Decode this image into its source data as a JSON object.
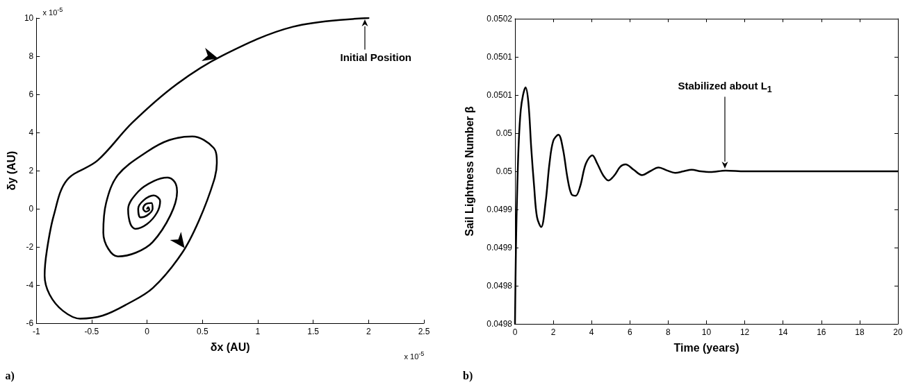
{
  "chart_data": [
    {
      "type": "line",
      "xlabel": "δx (AU)",
      "ylabel": "δy (AU)",
      "xlim": [
        -1,
        2.5
      ],
      "ylim": [
        -6,
        10
      ],
      "xticks": [
        -1,
        -0.5,
        0,
        0.5,
        1,
        1.5,
        2,
        2.5
      ],
      "yticks": [
        -6,
        -4,
        -2,
        0,
        2,
        4,
        6,
        8,
        10
      ],
      "marker": "none",
      "series": [
        {
          "color": "#000000",
          "x": [
            2,
            1.316,
            0.684,
            0.263,
            -0.132,
            -0.447,
            -0.724,
            -0.842,
            -0.905,
            -0.925,
            -0.88,
            -0.76,
            -0.605,
            -0.4,
            -0.18,
            0.053,
            0.316,
            0.47,
            0.605,
            0.63,
            0.6,
            0.408,
            0.2,
            0,
            -0.263,
            -0.37,
            -0.395,
            -0.35,
            -0.263,
            -0.1,
            0.05,
            0.211,
            0.271,
            0.25,
            0.184,
            0.06,
            -0.08,
            -0.171,
            -0.15,
            -0.105,
            0,
            0.09,
            0.118,
            0.06,
            -0.03,
            -0.08,
            -0.06,
            0,
            0.05,
            0.04,
            -0.01,
            -0.035,
            -0.01,
            0.02,
            0.01,
            0
          ],
          "values": [
            10,
            9.54,
            8.04,
            6.51,
            4.52,
            2.53,
            1.5,
            -0.34,
            -2.2,
            -3.5,
            -4.5,
            -5.35,
            -5.76,
            -5.6,
            -5,
            -4.15,
            -2.32,
            -0.6,
            1.5,
            2.4,
            3.2,
            3.79,
            3.6,
            2.99,
            1.77,
            0.3,
            -1.25,
            -2.1,
            -2.5,
            -2.3,
            -1.75,
            -0.34,
            0.89,
            1.4,
            1.64,
            1.45,
            0.9,
            -0.03,
            -0.8,
            -1.05,
            -0.8,
            -0.2,
            0.4,
            0.7,
            0.45,
            0,
            -0.45,
            -0.35,
            0,
            0.3,
            0.25,
            0,
            -0.15,
            -0.05,
            0.08,
            0
          ]
        }
      ],
      "annotations": [
        "a)",
        "x 10$^{-5}$",
        "x 10$^{-5}$",
        "Initial Position"
      ]
    },
    {
      "type": "line",
      "xlabel": "Time (years)",
      "ylabel": "Sail Lightness Number β",
      "xlim": [
        0,
        20
      ],
      "ylim": [
        0.0498,
        0.0502
      ],
      "xticks": [
        0,
        2,
        4,
        6,
        8,
        10,
        12,
        14,
        16,
        18,
        20
      ],
      "yticks": [
        {
          "value": 0.0498,
          "label": "0.0498"
        },
        {
          "value": 0.04985,
          "label": "0.0498"
        },
        {
          "value": 0.0499,
          "label": "0.0499"
        },
        {
          "value": 0.04995,
          "label": "0.0499"
        },
        {
          "value": 0.05,
          "label": "0.05"
        },
        {
          "value": 0.05005,
          "label": "0.05"
        },
        {
          "value": 0.0501,
          "label": "0.0501"
        },
        {
          "value": 0.05015,
          "label": "0.0501"
        },
        {
          "value": 0.0502,
          "label": "0.0502"
        }
      ],
      "marker": "none",
      "series": [
        {
          "color": "#000000",
          "x": [
            0,
            0.05,
            0.12,
            0.2,
            0.3,
            0.42,
            0.55,
            0.7,
            0.85,
            1,
            1.15,
            1.37,
            1.6,
            1.8,
            2,
            2.27,
            2.5,
            2.75,
            2.95,
            3.17,
            3.4,
            3.7,
            4.04,
            4.3,
            4.6,
            4.88,
            5.2,
            5.5,
            5.77,
            6.2,
            6.63,
            7.05,
            7.5,
            7.95,
            8.36,
            8.8,
            9.23,
            9.7,
            10.2,
            11,
            12,
            14,
            16,
            18,
            20
          ],
          "values": [
            0.0498,
            0.0499,
            0.04998,
            0.05004,
            0.05008,
            0.0501,
            0.05011,
            0.05009,
            0.05003,
            0.04998,
            0.04994,
            0.049927,
            0.04996,
            0.05001,
            0.05004,
            0.050048,
            0.05003,
            0.04999,
            0.04997,
            0.049968,
            0.04998,
            0.05001,
            0.050021,
            0.05001,
            0.049995,
            0.049988,
            0.049995,
            0.050006,
            0.050009,
            0.050002,
            0.049995,
            0.05,
            0.050005,
            0.050001,
            0.049998,
            0.05,
            0.050002,
            0.05,
            0.049999,
            0.050001,
            0.05,
            0.05,
            0.05,
            0.05,
            0.05
          ]
        }
      ],
      "annotations": [
        "b)",
        "Stabilized about L$_{1}$"
      ]
    }
  ]
}
